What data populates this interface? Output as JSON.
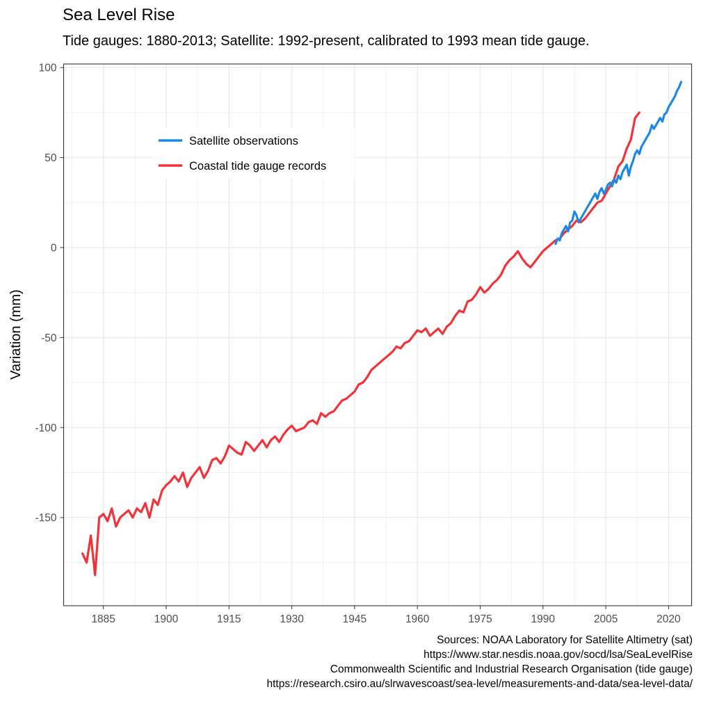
{
  "title": "Sea Level Rise",
  "subtitle": "Tide gauges: 1880-2013; Satellite: 1992-present, calibrated to 1993 mean tide gauge.",
  "caption": [
    "Sources: NOAA Laboratory for Satellite Altimetry (sat)",
    "https://www.star.nesdis.noaa.gov/socd/lsa/SeaLevelRise",
    "Commonwealth Scientific and Industrial Research Organisation (tide gauge)",
    "https://research.csiro.au/slrwavescoast/sea-level/measurements-and-data/sea-level-data/"
  ],
  "chart_data": {
    "type": "line",
    "title": "Sea Level Rise",
    "subtitle": "Tide gauges: 1880-2013; Satellite: 1992-present, calibrated to 1993 mean tide gauge.",
    "xlabel": "",
    "ylabel": "Variation (mm)",
    "xlim": [
      1875.5,
      2025.5
    ],
    "ylim": [
      -199,
      102
    ],
    "x_ticks": [
      1885,
      1900,
      1915,
      1930,
      1945,
      1960,
      1975,
      1990,
      2005,
      2020
    ],
    "y_ticks": [
      -150,
      -100,
      -50,
      0,
      50,
      100
    ],
    "grid": true,
    "legend_position": "top-left",
    "series": [
      {
        "name": "Satellite observations",
        "color": "#1e88e5",
        "x": [
          1993.0,
          1993.5,
          1994.0,
          1994.5,
          1995.0,
          1995.5,
          1996.0,
          1996.5,
          1997.0,
          1997.5,
          1998.0,
          1998.5,
          1999.0,
          1999.5,
          2000.0,
          2000.5,
          2001.0,
          2001.5,
          2002.0,
          2002.5,
          2003.0,
          2003.5,
          2004.0,
          2004.5,
          2005.0,
          2005.5,
          2006.0,
          2006.5,
          2007.0,
          2007.5,
          2008.0,
          2008.5,
          2009.0,
          2009.5,
          2010.0,
          2010.5,
          2011.0,
          2011.5,
          2012.0,
          2012.5,
          2013.0,
          2013.5,
          2014.0,
          2014.5,
          2015.0,
          2015.5,
          2016.0,
          2016.5,
          2017.0,
          2017.5,
          2018.0,
          2018.5,
          2019.0,
          2019.5,
          2020.0,
          2020.5,
          2021.0,
          2021.5,
          2022.0,
          2022.5,
          2023.0
        ],
        "y": [
          2,
          5,
          4,
          8,
          10,
          12,
          9,
          14,
          15,
          20,
          18,
          14,
          16,
          18,
          20,
          22,
          24,
          26,
          28,
          30,
          27,
          31,
          33,
          30,
          32,
          35,
          36,
          34,
          38,
          36,
          40,
          38,
          42,
          44,
          46,
          40,
          45,
          48,
          52,
          54,
          52,
          56,
          58,
          60,
          62,
          64,
          68,
          66,
          68,
          70,
          72,
          70,
          74,
          75,
          78,
          80,
          82,
          84,
          87,
          89,
          92
        ]
      },
      {
        "name": "Coastal tide gauge records",
        "color": "#f23238",
        "x": [
          1880,
          1881,
          1882,
          1883,
          1884,
          1885,
          1886,
          1887,
          1888,
          1889,
          1890,
          1891,
          1892,
          1893,
          1894,
          1895,
          1896,
          1897,
          1898,
          1899,
          1900,
          1901,
          1902,
          1903,
          1904,
          1905,
          1906,
          1907,
          1908,
          1909,
          1910,
          1911,
          1912,
          1913,
          1914,
          1915,
          1916,
          1917,
          1918,
          1919,
          1920,
          1921,
          1922,
          1923,
          1924,
          1925,
          1926,
          1927,
          1928,
          1929,
          1930,
          1931,
          1932,
          1933,
          1934,
          1935,
          1936,
          1937,
          1938,
          1939,
          1940,
          1941,
          1942,
          1943,
          1944,
          1945,
          1946,
          1947,
          1948,
          1949,
          1950,
          1951,
          1952,
          1953,
          1954,
          1955,
          1956,
          1957,
          1958,
          1959,
          1960,
          1961,
          1962,
          1963,
          1964,
          1965,
          1966,
          1967,
          1968,
          1969,
          1970,
          1971,
          1972,
          1973,
          1974,
          1975,
          1976,
          1977,
          1978,
          1979,
          1980,
          1981,
          1982,
          1983,
          1984,
          1985,
          1986,
          1987,
          1988,
          1989,
          1990,
          1991,
          1992,
          1993,
          1994,
          1995,
          1996,
          1997,
          1998,
          1999,
          2000,
          2001,
          2002,
          2003,
          2004,
          2005,
          2006,
          2007,
          2008,
          2009,
          2010,
          2011,
          2012,
          2013
        ],
        "y": [
          -170,
          -175,
          -160,
          -182,
          -150,
          -148,
          -152,
          -145,
          -155,
          -150,
          -148,
          -146,
          -150,
          -145,
          -147,
          -142,
          -150,
          -140,
          -143,
          -135,
          -132,
          -130,
          -127,
          -130,
          -125,
          -133,
          -128,
          -125,
          -122,
          -128,
          -124,
          -118,
          -117,
          -120,
          -116,
          -110,
          -112,
          -114,
          -115,
          -108,
          -110,
          -113,
          -110,
          -107,
          -111,
          -107,
          -105,
          -108,
          -104,
          -101,
          -99,
          -102,
          -101,
          -100,
          -97,
          -96,
          -98,
          -92,
          -94,
          -92,
          -91,
          -88,
          -85,
          -84,
          -82,
          -80,
          -76,
          -75,
          -72,
          -68,
          -66,
          -64,
          -62,
          -60,
          -58,
          -55,
          -56,
          -53,
          -52,
          -49,
          -46,
          -47,
          -45,
          -49,
          -47,
          -45,
          -48,
          -44,
          -42,
          -38,
          -35,
          -36,
          -30,
          -29,
          -26,
          -22,
          -25,
          -23,
          -20,
          -18,
          -15,
          -10,
          -7,
          -5,
          -2,
          -6,
          -9,
          -11,
          -8,
          -5,
          -2,
          0,
          2,
          4,
          5,
          8,
          10,
          12,
          15,
          14,
          16,
          19,
          22,
          25,
          26,
          30,
          34,
          38,
          45,
          48,
          55,
          60,
          72,
          75
        ]
      }
    ]
  }
}
